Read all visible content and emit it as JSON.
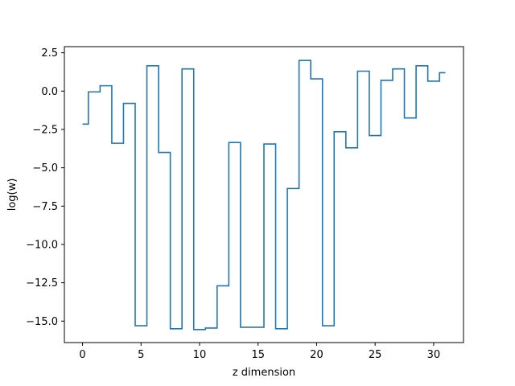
{
  "chart_data": {
    "type": "line",
    "drawstyle": "steps-mid",
    "xlabel": "z dimension",
    "ylabel": "log(w)",
    "xlim": [
      -1.55,
      32.55
    ],
    "ylim": [
      -16.4,
      2.9
    ],
    "xticks": [
      0,
      5,
      10,
      15,
      20,
      25,
      30
    ],
    "yticks": [
      2.5,
      0.0,
      -2.5,
      -5.0,
      -7.5,
      -10.0,
      -12.5,
      -15.0
    ],
    "ytick_labels": [
      "2.5",
      "0.0",
      "−2.5",
      "−5.0",
      "−7.5",
      "−10.0",
      "−12.5",
      "−15.0"
    ],
    "grid": false,
    "color": "#1f77b4",
    "series": [
      {
        "x": [
          0,
          1,
          2,
          3,
          4,
          5,
          6,
          7,
          8,
          9,
          10,
          11,
          12,
          13,
          14,
          15,
          16,
          17,
          18,
          19,
          20,
          21,
          22,
          23,
          24,
          25,
          26,
          27,
          28,
          29,
          30,
          31
        ],
        "values": [
          -2.15,
          -0.05,
          0.35,
          -3.4,
          -0.8,
          -15.3,
          1.65,
          -4.0,
          -15.5,
          1.45,
          -15.55,
          -15.45,
          -12.7,
          -3.35,
          -15.4,
          -15.4,
          -3.45,
          -15.5,
          -6.35,
          2.0,
          0.8,
          -15.3,
          -2.65,
          -3.7,
          1.3,
          -2.9,
          0.7,
          1.45,
          -1.75,
          1.65,
          0.65,
          1.2
        ]
      }
    ]
  }
}
